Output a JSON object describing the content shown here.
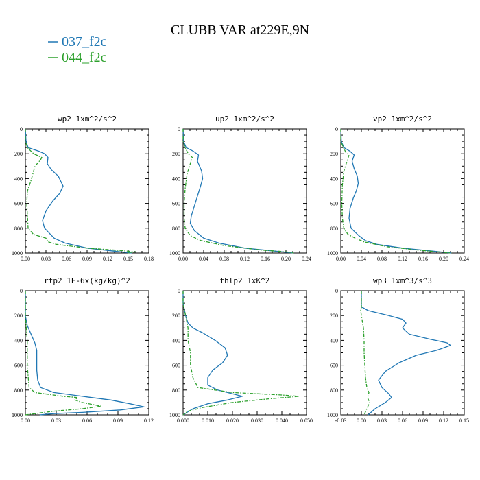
{
  "figure": {
    "title": "CLUBB VAR at229E,9N",
    "legend": [
      {
        "label": "037_f2c",
        "color": "#1f77b4",
        "dash": "solid"
      },
      {
        "label": "044_f2c",
        "color": "#2ca02c",
        "dash": "dashdot"
      }
    ]
  },
  "chart_data": [
    {
      "type": "line",
      "title": "wp2   1xm^2/s^2",
      "xlim": [
        0,
        0.18
      ],
      "xticks": [
        "0.00",
        "0.03",
        "0.06",
        "0.09",
        "0.12",
        "0.15",
        "0.18"
      ],
      "ylim": [
        1000,
        0
      ],
      "yticks": [
        "0",
        "200",
        "400",
        "600",
        "800",
        "1000"
      ],
      "series": [
        {
          "name": "037_f2c",
          "color": "#1f77b4",
          "dash": "solid",
          "points": [
            [
              0.0,
              0
            ],
            [
              0.001,
              100
            ],
            [
              0.004,
              150
            ],
            [
              0.02,
              180
            ],
            [
              0.028,
              200
            ],
            [
              0.033,
              230
            ],
            [
              0.032,
              280
            ],
            [
              0.038,
              330
            ],
            [
              0.048,
              380
            ],
            [
              0.055,
              460
            ],
            [
              0.05,
              520
            ],
            [
              0.04,
              580
            ],
            [
              0.03,
              660
            ],
            [
              0.025,
              740
            ],
            [
              0.028,
              800
            ],
            [
              0.042,
              880
            ],
            [
              0.058,
              920
            ],
            [
              0.09,
              960
            ],
            [
              0.13,
              985
            ],
            [
              0.155,
              1000
            ]
          ]
        },
        {
          "name": "044_f2c",
          "color": "#2ca02c",
          "dash": "dashdot",
          "points": [
            [
              0.0,
              0
            ],
            [
              0.0,
              100
            ],
            [
              0.003,
              150
            ],
            [
              0.012,
              200
            ],
            [
              0.024,
              230
            ],
            [
              0.022,
              250
            ],
            [
              0.014,
              300
            ],
            [
              0.008,
              420
            ],
            [
              0.003,
              500
            ],
            [
              0.002,
              600
            ],
            [
              0.003,
              700
            ],
            [
              0.004,
              800
            ],
            [
              0.012,
              850
            ],
            [
              0.03,
              880
            ],
            [
              0.033,
              910
            ],
            [
              0.045,
              930
            ],
            [
              0.09,
              960
            ],
            [
              0.14,
              980
            ],
            [
              0.16,
              990
            ],
            [
              0.15,
              1000
            ]
          ]
        }
      ]
    },
    {
      "type": "line",
      "title": "up2   1xm^2/s^2",
      "xlim": [
        0,
        0.24
      ],
      "xticks": [
        "0.00",
        "0.04",
        "0.08",
        "0.12",
        "0.16",
        "0.20",
        "0.24"
      ],
      "ylim": [
        1000,
        0
      ],
      "yticks": [
        "0",
        "200",
        "400",
        "600",
        "800",
        "1000"
      ],
      "series": [
        {
          "name": "037_f2c",
          "color": "#1f77b4",
          "dash": "solid",
          "points": [
            [
              0.0,
              0
            ],
            [
              0.001,
              100
            ],
            [
              0.006,
              150
            ],
            [
              0.02,
              180
            ],
            [
              0.03,
              210
            ],
            [
              0.028,
              260
            ],
            [
              0.032,
              300
            ],
            [
              0.036,
              340
            ],
            [
              0.038,
              400
            ],
            [
              0.034,
              460
            ],
            [
              0.028,
              540
            ],
            [
              0.022,
              620
            ],
            [
              0.016,
              700
            ],
            [
              0.014,
              760
            ],
            [
              0.022,
              820
            ],
            [
              0.04,
              880
            ],
            [
              0.07,
              920
            ],
            [
              0.12,
              960
            ],
            [
              0.18,
              985
            ],
            [
              0.215,
              1000
            ]
          ]
        },
        {
          "name": "044_f2c",
          "color": "#2ca02c",
          "dash": "dashdot",
          "points": [
            [
              0.0,
              0
            ],
            [
              0.0,
              100
            ],
            [
              0.004,
              150
            ],
            [
              0.01,
              200
            ],
            [
              0.018,
              230
            ],
            [
              0.014,
              280
            ],
            [
              0.008,
              360
            ],
            [
              0.004,
              480
            ],
            [
              0.002,
              600
            ],
            [
              0.002,
              720
            ],
            [
              0.004,
              800
            ],
            [
              0.014,
              860
            ],
            [
              0.035,
              900
            ],
            [
              0.08,
              940
            ],
            [
              0.15,
              975
            ],
            [
              0.2,
              990
            ],
            [
              0.215,
              1000
            ]
          ]
        }
      ]
    },
    {
      "type": "line",
      "title": "vp2   1xm^2/s^2",
      "xlim": [
        0,
        0.24
      ],
      "xticks": [
        "0.00",
        "0.04",
        "0.08",
        "0.12",
        "0.16",
        "0.20",
        "0.24"
      ],
      "ylim": [
        1000,
        0
      ],
      "yticks": [
        "0",
        "200",
        "400",
        "600",
        "800",
        "1000"
      ],
      "series": [
        {
          "name": "037_f2c",
          "color": "#1f77b4",
          "dash": "solid",
          "points": [
            [
              0.0,
              0
            ],
            [
              0.001,
              100
            ],
            [
              0.006,
              150
            ],
            [
              0.018,
              180
            ],
            [
              0.026,
              210
            ],
            [
              0.022,
              260
            ],
            [
              0.026,
              320
            ],
            [
              0.032,
              380
            ],
            [
              0.034,
              440
            ],
            [
              0.03,
              500
            ],
            [
              0.024,
              560
            ],
            [
              0.018,
              640
            ],
            [
              0.016,
              720
            ],
            [
              0.02,
              800
            ],
            [
              0.035,
              860
            ],
            [
              0.048,
              900
            ],
            [
              0.07,
              930
            ],
            [
              0.12,
              960
            ],
            [
              0.18,
              985
            ],
            [
              0.215,
              1000
            ]
          ]
        },
        {
          "name": "044_f2c",
          "color": "#2ca02c",
          "dash": "dashdot",
          "points": [
            [
              0.0,
              0
            ],
            [
              0.0,
              100
            ],
            [
              0.005,
              150
            ],
            [
              0.01,
              190
            ],
            [
              0.016,
              210
            ],
            [
              0.012,
              260
            ],
            [
              0.006,
              340
            ],
            [
              0.003,
              450
            ],
            [
              0.002,
              600
            ],
            [
              0.003,
              720
            ],
            [
              0.006,
              800
            ],
            [
              0.014,
              850
            ],
            [
              0.028,
              880
            ],
            [
              0.045,
              910
            ],
            [
              0.09,
              950
            ],
            [
              0.16,
              980
            ],
            [
              0.215,
              1000
            ]
          ]
        }
      ]
    },
    {
      "type": "line",
      "title": "rtp2   1E-6x(kg/kg)^2",
      "xlim": [
        0,
        0.13
      ],
      "xticks": [
        "0.00",
        "0.03",
        "0.06",
        "0.09",
        "0.12"
      ],
      "ylim": [
        1000,
        0
      ],
      "yticks": [
        "0",
        "200",
        "400",
        "600",
        "800",
        "1000"
      ],
      "series": [
        {
          "name": "037_f2c",
          "color": "#1f77b4",
          "dash": "solid",
          "points": [
            [
              0.0,
              0
            ],
            [
              0.0,
              200
            ],
            [
              0.002,
              280
            ],
            [
              0.006,
              350
            ],
            [
              0.01,
              420
            ],
            [
              0.012,
              480
            ],
            [
              0.012,
              560
            ],
            [
              0.012,
              640
            ],
            [
              0.013,
              720
            ],
            [
              0.016,
              780
            ],
            [
              0.03,
              820
            ],
            [
              0.06,
              850
            ],
            [
              0.09,
              880
            ],
            [
              0.11,
              910
            ],
            [
              0.125,
              935
            ],
            [
              0.1,
              960
            ],
            [
              0.06,
              980
            ],
            [
              0.03,
              990
            ],
            [
              0.015,
              1000
            ]
          ]
        },
        {
          "name": "044_f2c",
          "color": "#2ca02c",
          "dash": "dashdot",
          "points": [
            [
              0.0,
              0
            ],
            [
              0.0,
              200
            ],
            [
              0.001,
              300
            ],
            [
              0.002,
              400
            ],
            [
              0.002,
              500
            ],
            [
              0.002,
              600
            ],
            [
              0.003,
              700
            ],
            [
              0.004,
              780
            ],
            [
              0.01,
              820
            ],
            [
              0.04,
              850
            ],
            [
              0.055,
              860
            ],
            [
              0.052,
              880
            ],
            [
              0.06,
              900
            ],
            [
              0.08,
              930
            ],
            [
              0.06,
              950
            ],
            [
              0.03,
              970
            ],
            [
              0.01,
              990
            ],
            [
              0.0,
              1000
            ]
          ]
        }
      ]
    },
    {
      "type": "line",
      "title": "thlp2   1xK^2",
      "xlim": [
        0,
        0.05
      ],
      "xticks": [
        "0.000",
        "0.010",
        "0.020",
        "0.030",
        "0.040",
        "0.050"
      ],
      "ylim": [
        1000,
        0
      ],
      "yticks": [
        "0",
        "200",
        "400",
        "600",
        "800",
        "1000"
      ],
      "series": [
        {
          "name": "037_f2c",
          "color": "#1f77b4",
          "dash": "solid",
          "points": [
            [
              0.0,
              0
            ],
            [
              0.0,
              100
            ],
            [
              0.001,
              200
            ],
            [
              0.002,
              260
            ],
            [
              0.004,
              300
            ],
            [
              0.008,
              340
            ],
            [
              0.013,
              400
            ],
            [
              0.017,
              460
            ],
            [
              0.018,
              520
            ],
            [
              0.016,
              580
            ],
            [
              0.012,
              640
            ],
            [
              0.01,
              700
            ],
            [
              0.01,
              760
            ],
            [
              0.014,
              800
            ],
            [
              0.02,
              830
            ],
            [
              0.024,
              850
            ],
            [
              0.018,
              880
            ],
            [
              0.01,
              910
            ],
            [
              0.004,
              950
            ],
            [
              0.0,
              1000
            ]
          ]
        },
        {
          "name": "044_f2c",
          "color": "#2ca02c",
          "dash": "dashdot",
          "points": [
            [
              0.0,
              0
            ],
            [
              0.0,
              100
            ],
            [
              0.001,
              200
            ],
            [
              0.002,
              300
            ],
            [
              0.002,
              400
            ],
            [
              0.003,
              500
            ],
            [
              0.003,
              600
            ],
            [
              0.004,
              700
            ],
            [
              0.006,
              780
            ],
            [
              0.02,
              820
            ],
            [
              0.04,
              840
            ],
            [
              0.047,
              850
            ],
            [
              0.035,
              870
            ],
            [
              0.02,
              900
            ],
            [
              0.008,
              940
            ],
            [
              0.002,
              970
            ],
            [
              0.0,
              1000
            ]
          ]
        }
      ]
    },
    {
      "type": "line",
      "title": "wp3   1xm^3/s^3",
      "xlim": [
        -0.03,
        0.15
      ],
      "xticks": [
        "-0.03",
        "0.00",
        "0.03",
        "0.06",
        "0.09",
        "0.12",
        "0.15"
      ],
      "ylim": [
        1000,
        0
      ],
      "yticks": [
        "0",
        "200",
        "400",
        "600",
        "800",
        "1000"
      ],
      "series": [
        {
          "name": "037_f2c",
          "color": "#1f77b4",
          "dash": "solid",
          "points": [
            [
              0.0,
              0
            ],
            [
              0.0,
              130
            ],
            [
              0.01,
              160
            ],
            [
              0.04,
              200
            ],
            [
              0.06,
              230
            ],
            [
              0.065,
              260
            ],
            [
              0.06,
              300
            ],
            [
              0.07,
              350
            ],
            [
              0.1,
              390
            ],
            [
              0.125,
              420
            ],
            [
              0.13,
              440
            ],
            [
              0.11,
              480
            ],
            [
              0.08,
              520
            ],
            [
              0.055,
              580
            ],
            [
              0.035,
              650
            ],
            [
              0.025,
              720
            ],
            [
              0.03,
              780
            ],
            [
              0.04,
              830
            ],
            [
              0.044,
              860
            ],
            [
              0.035,
              900
            ],
            [
              0.02,
              950
            ],
            [
              0.01,
              1000
            ]
          ]
        },
        {
          "name": "044_f2c",
          "color": "#2ca02c",
          "dash": "dashdot",
          "points": [
            [
              0.0,
              0
            ],
            [
              0.0,
              130
            ],
            [
              -0.001,
              160
            ],
            [
              0.0,
              200
            ],
            [
              0.003,
              300
            ],
            [
              0.004,
              400
            ],
            [
              0.004,
              500
            ],
            [
              0.005,
              600
            ],
            [
              0.006,
              700
            ],
            [
              0.008,
              780
            ],
            [
              0.011,
              820
            ],
            [
              0.009,
              860
            ],
            [
              0.012,
              900
            ],
            [
              0.008,
              950
            ],
            [
              0.004,
              1000
            ]
          ]
        }
      ]
    }
  ]
}
